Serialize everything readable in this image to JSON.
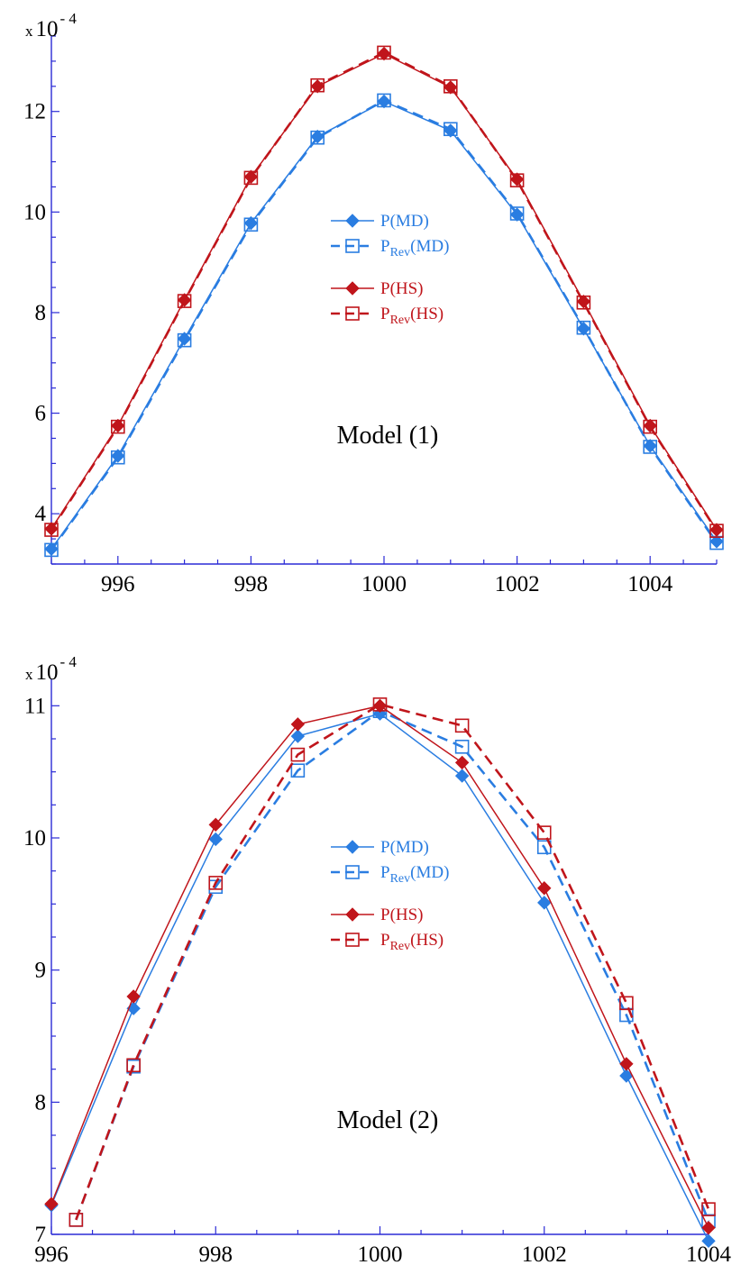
{
  "chart_data": [
    {
      "type": "line",
      "annotation": "Model (1)",
      "multiplier": {
        "base": "x 10",
        "exp": "- 4"
      },
      "xlim": [
        995,
        1005
      ],
      "ylim": [
        3,
        13.5
      ],
      "x_ticks": [
        996,
        998,
        1000,
        1002,
        1004
      ],
      "y_ticks": [
        4,
        6,
        8,
        10,
        12
      ],
      "legend_position": "center",
      "series": [
        {
          "name": "P(MD)",
          "sub": "",
          "name_tail": "",
          "color": "#2a7de1",
          "dash": false,
          "marker": "diamond-filled",
          "x": [
            995,
            996,
            997,
            998,
            999,
            1000,
            1001,
            1002,
            1003,
            1004,
            1005
          ],
          "y": [
            3.3,
            5.15,
            7.48,
            9.78,
            11.5,
            12.2,
            11.62,
            9.95,
            7.68,
            5.35,
            3.45
          ]
        },
        {
          "name": "P",
          "sub": "Rev",
          "name_tail": "(MD)",
          "color": "#2a7de1",
          "dash": true,
          "marker": "square-open",
          "x": [
            995,
            996,
            997,
            998,
            999,
            1000,
            1001,
            1002,
            1003,
            1004,
            1005
          ],
          "y": [
            3.28,
            5.12,
            7.45,
            9.75,
            11.48,
            12.22,
            11.65,
            9.97,
            7.7,
            5.33,
            3.42
          ]
        },
        {
          "name": "P(HS)",
          "sub": "",
          "name_tail": "",
          "color": "#c0151b",
          "dash": false,
          "marker": "diamond-filled",
          "x": [
            995,
            996,
            997,
            998,
            999,
            1000,
            1001,
            1002,
            1003,
            1004,
            1005
          ],
          "y": [
            3.7,
            5.75,
            8.25,
            10.7,
            12.5,
            13.15,
            12.48,
            10.65,
            8.22,
            5.75,
            3.68
          ]
        },
        {
          "name": "P",
          "sub": "Rev",
          "name_tail": "(HS)",
          "color": "#c0151b",
          "dash": true,
          "marker": "square-open",
          "x": [
            995,
            996,
            997,
            998,
            999,
            1000,
            1001,
            1002,
            1003,
            1004,
            1005
          ],
          "y": [
            3.68,
            5.73,
            8.23,
            10.68,
            12.52,
            13.17,
            12.5,
            10.63,
            8.2,
            5.73,
            3.66
          ]
        }
      ]
    },
    {
      "type": "line",
      "annotation": "Model (2)",
      "multiplier": {
        "base": "x 10",
        "exp": "- 4"
      },
      "xlim": [
        996,
        1004
      ],
      "ylim": [
        7,
        11.2
      ],
      "x_ticks": [
        996,
        998,
        1000,
        1002,
        1004
      ],
      "y_ticks": [
        7,
        8,
        9,
        10,
        11
      ],
      "legend_position": "center",
      "series": [
        {
          "name": "P(MD)",
          "sub": "",
          "name_tail": "",
          "color": "#2a7de1",
          "dash": false,
          "marker": "diamond-filled",
          "x": [
            996,
            997,
            998,
            999,
            1000,
            1001,
            1002,
            1003,
            1004
          ],
          "y": [
            7.22,
            8.71,
            9.99,
            10.77,
            10.94,
            10.47,
            9.51,
            8.2,
            6.95
          ]
        },
        {
          "name": "P",
          "sub": "Rev",
          "name_tail": "(MD)",
          "color": "#2a7de1",
          "dash": true,
          "marker": "square-open",
          "x": [
            996.3,
            997,
            998,
            999,
            1000,
            1001,
            1002,
            1003,
            1004
          ],
          "y": [
            7.11,
            8.27,
            9.63,
            10.51,
            10.96,
            10.69,
            9.93,
            8.66,
            7.1
          ]
        },
        {
          "name": "P(HS)",
          "sub": "",
          "name_tail": "",
          "color": "#c0151b",
          "dash": false,
          "marker": "diamond-filled",
          "x": [
            996,
            997,
            998,
            999,
            1000,
            1001,
            1002,
            1003,
            1004
          ],
          "y": [
            7.23,
            8.8,
            10.1,
            10.86,
            11.0,
            10.57,
            9.62,
            8.29,
            7.05
          ]
        },
        {
          "name": "P",
          "sub": "Rev",
          "name_tail": "(HS)",
          "color": "#c0151b",
          "dash": true,
          "marker": "square-open",
          "x": [
            996.3,
            997,
            998,
            999,
            1000,
            1001,
            1002,
            1003,
            1004
          ],
          "y": [
            7.11,
            8.28,
            9.66,
            10.63,
            11.01,
            10.85,
            10.04,
            8.75,
            7.19
          ]
        }
      ]
    }
  ]
}
